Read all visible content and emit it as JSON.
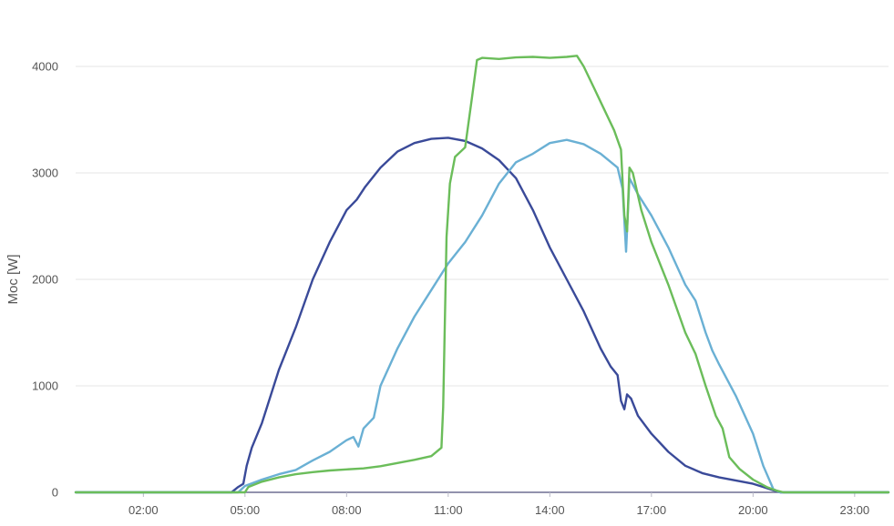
{
  "chart_data": {
    "type": "line",
    "ylabel": "Moc [W]",
    "xlabel": "",
    "x_unit": "hour",
    "xlim": [
      0,
      24
    ],
    "ylim": [
      0,
      4000
    ],
    "yticks": [
      0,
      1000,
      2000,
      3000,
      4000
    ],
    "ytick_labels": [
      "0",
      "1000",
      "2000",
      "3000",
      "4000"
    ],
    "xticks": [
      2,
      5,
      8,
      11,
      14,
      17,
      20,
      23
    ],
    "xtick_labels": [
      "02:00",
      "05:00",
      "08:00",
      "11:00",
      "14:00",
      "17:00",
      "20:00",
      "23:00"
    ],
    "grid": true,
    "legend": "none",
    "series": [
      {
        "color": "#3a4a99",
        "points": [
          [
            0,
            0
          ],
          [
            4.6,
            0
          ],
          [
            4.8,
            50
          ],
          [
            4.95,
            80
          ],
          [
            5.05,
            250
          ],
          [
            5.2,
            420
          ],
          [
            5.5,
            650
          ],
          [
            6.0,
            1150
          ],
          [
            6.5,
            1550
          ],
          [
            7.0,
            2000
          ],
          [
            7.5,
            2350
          ],
          [
            8.0,
            2650
          ],
          [
            8.3,
            2750
          ],
          [
            8.55,
            2870
          ],
          [
            9.0,
            3050
          ],
          [
            9.5,
            3200
          ],
          [
            10.0,
            3280
          ],
          [
            10.5,
            3320
          ],
          [
            11.0,
            3330
          ],
          [
            11.5,
            3300
          ],
          [
            12.0,
            3230
          ],
          [
            12.5,
            3120
          ],
          [
            13.0,
            2950
          ],
          [
            13.5,
            2650
          ],
          [
            14.0,
            2300
          ],
          [
            14.5,
            2000
          ],
          [
            15.0,
            1700
          ],
          [
            15.5,
            1350
          ],
          [
            15.8,
            1180
          ],
          [
            16.0,
            1100
          ],
          [
            16.1,
            860
          ],
          [
            16.2,
            780
          ],
          [
            16.28,
            920
          ],
          [
            16.4,
            880
          ],
          [
            16.6,
            720
          ],
          [
            17.0,
            550
          ],
          [
            17.5,
            380
          ],
          [
            18.0,
            250
          ],
          [
            18.5,
            180
          ],
          [
            19.0,
            140
          ],
          [
            19.5,
            110
          ],
          [
            20.0,
            80
          ],
          [
            20.3,
            50
          ],
          [
            20.6,
            20
          ],
          [
            20.8,
            0
          ],
          [
            24,
            0
          ]
        ]
      },
      {
        "color": "#6ab0d4",
        "points": [
          [
            0,
            0
          ],
          [
            4.8,
            0
          ],
          [
            5.0,
            60
          ],
          [
            5.5,
            120
          ],
          [
            6.0,
            170
          ],
          [
            6.5,
            210
          ],
          [
            7.0,
            300
          ],
          [
            7.5,
            380
          ],
          [
            8.0,
            490
          ],
          [
            8.2,
            520
          ],
          [
            8.35,
            430
          ],
          [
            8.5,
            600
          ],
          [
            8.8,
            700
          ],
          [
            9.0,
            1000
          ],
          [
            9.5,
            1350
          ],
          [
            10.0,
            1650
          ],
          [
            10.5,
            1900
          ],
          [
            11.0,
            2150
          ],
          [
            11.5,
            2350
          ],
          [
            12.0,
            2600
          ],
          [
            12.5,
            2900
          ],
          [
            13.0,
            3100
          ],
          [
            13.5,
            3180
          ],
          [
            14.0,
            3280
          ],
          [
            14.5,
            3310
          ],
          [
            15.0,
            3270
          ],
          [
            15.5,
            3180
          ],
          [
            16.0,
            3050
          ],
          [
            16.15,
            2850
          ],
          [
            16.25,
            2260
          ],
          [
            16.35,
            2950
          ],
          [
            16.6,
            2800
          ],
          [
            17.0,
            2600
          ],
          [
            17.5,
            2300
          ],
          [
            18.0,
            1950
          ],
          [
            18.3,
            1800
          ],
          [
            18.6,
            1500
          ],
          [
            18.8,
            1330
          ],
          [
            19.0,
            1200
          ],
          [
            19.5,
            900
          ],
          [
            20.0,
            550
          ],
          [
            20.3,
            250
          ],
          [
            20.6,
            30
          ],
          [
            20.8,
            0
          ],
          [
            24,
            0
          ]
        ]
      },
      {
        "color": "#6bbd5a",
        "points": [
          [
            0,
            0
          ],
          [
            5.0,
            0
          ],
          [
            5.1,
            50
          ],
          [
            5.5,
            100
          ],
          [
            6.0,
            140
          ],
          [
            6.5,
            170
          ],
          [
            7.0,
            190
          ],
          [
            7.5,
            205
          ],
          [
            8.0,
            215
          ],
          [
            8.5,
            225
          ],
          [
            9.0,
            245
          ],
          [
            9.5,
            275
          ],
          [
            10.0,
            305
          ],
          [
            10.5,
            340
          ],
          [
            10.8,
            420
          ],
          [
            10.85,
            800
          ],
          [
            10.95,
            2400
          ],
          [
            11.05,
            2900
          ],
          [
            11.2,
            3150
          ],
          [
            11.5,
            3240
          ],
          [
            11.7,
            3700
          ],
          [
            11.85,
            4060
          ],
          [
            12.0,
            4080
          ],
          [
            12.5,
            4070
          ],
          [
            13.0,
            4085
          ],
          [
            13.5,
            4090
          ],
          [
            14.0,
            4080
          ],
          [
            14.5,
            4090
          ],
          [
            14.8,
            4100
          ],
          [
            15.0,
            4000
          ],
          [
            15.3,
            3800
          ],
          [
            15.6,
            3600
          ],
          [
            15.9,
            3400
          ],
          [
            16.1,
            3220
          ],
          [
            16.2,
            2600
          ],
          [
            16.28,
            2450
          ],
          [
            16.35,
            3050
          ],
          [
            16.45,
            3000
          ],
          [
            16.7,
            2650
          ],
          [
            17.0,
            2350
          ],
          [
            17.5,
            1950
          ],
          [
            18.0,
            1500
          ],
          [
            18.3,
            1300
          ],
          [
            18.6,
            1000
          ],
          [
            18.9,
            720
          ],
          [
            19.1,
            600
          ],
          [
            19.3,
            330
          ],
          [
            19.6,
            220
          ],
          [
            20.0,
            120
          ],
          [
            20.4,
            50
          ],
          [
            20.7,
            15
          ],
          [
            20.9,
            0
          ],
          [
            24,
            0
          ]
        ]
      }
    ]
  }
}
